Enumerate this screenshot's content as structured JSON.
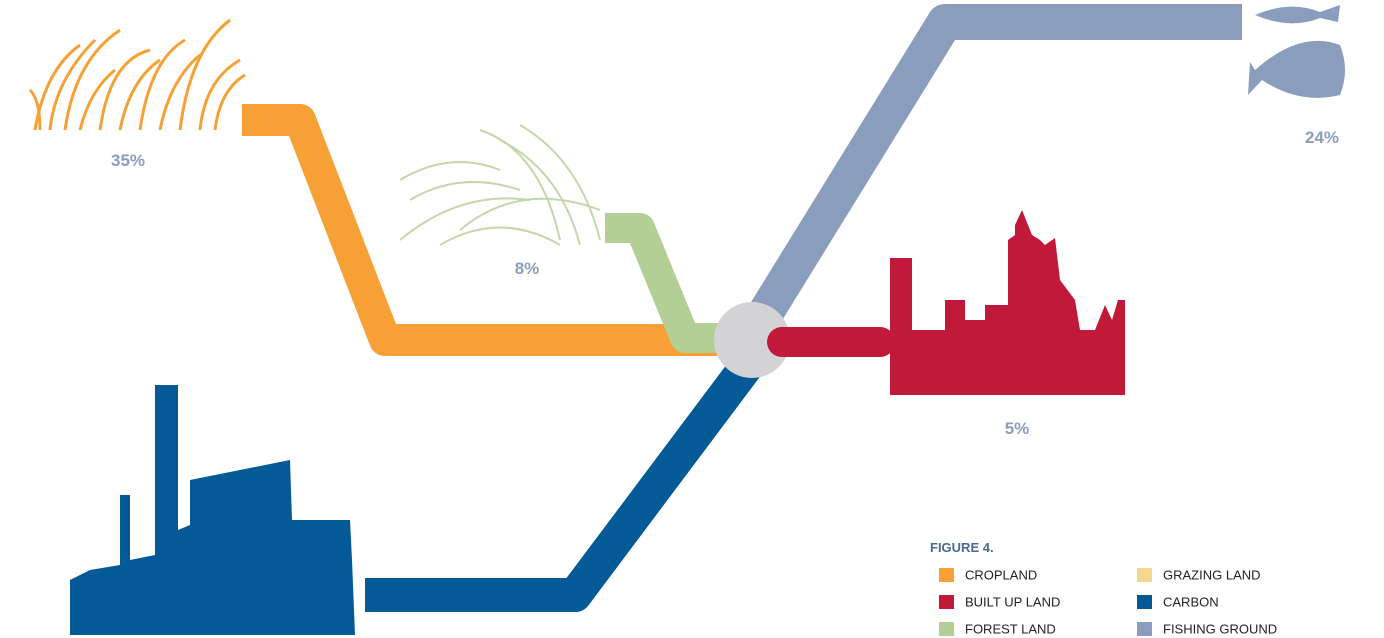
{
  "figure": {
    "title": "FIGURE 4.",
    "legend": [
      {
        "name": "CROPLAND",
        "color": "#f6a036"
      },
      {
        "name": "BUILT UP LAND",
        "color": "#c0193a"
      },
      {
        "name": "FOREST LAND",
        "color": "#b4cf95"
      },
      {
        "name": "GRAZING LAND",
        "color": "#f4d88f"
      },
      {
        "name": "CARBON",
        "color": "#035a96"
      },
      {
        "name": "FISHING GROUND",
        "color": "#8b9dbd"
      }
    ],
    "labels": [
      "35%",
      "8%",
      "5%",
      "24%"
    ]
  }
}
